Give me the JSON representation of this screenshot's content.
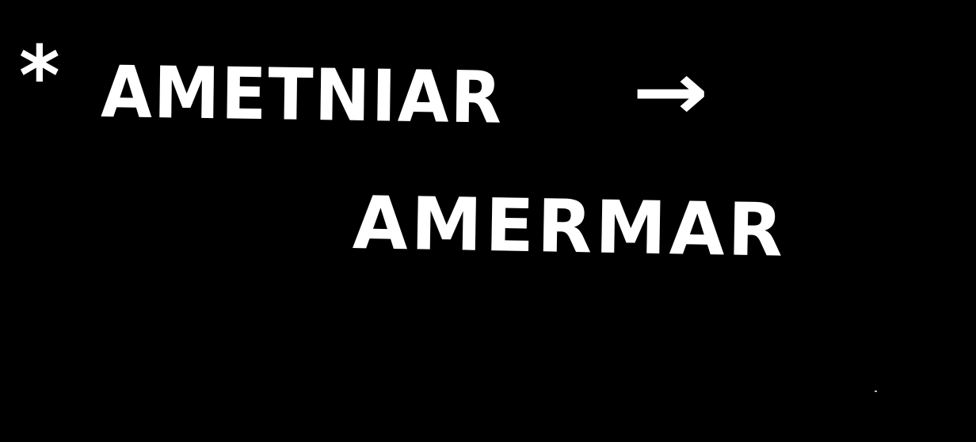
{
  "note": {
    "marker": "*",
    "source_word": "AMETNIAR",
    "arrow": "→",
    "result_word": "AMERMAR"
  },
  "colors": {
    "background": "#000000",
    "ink": "#ffffff"
  }
}
